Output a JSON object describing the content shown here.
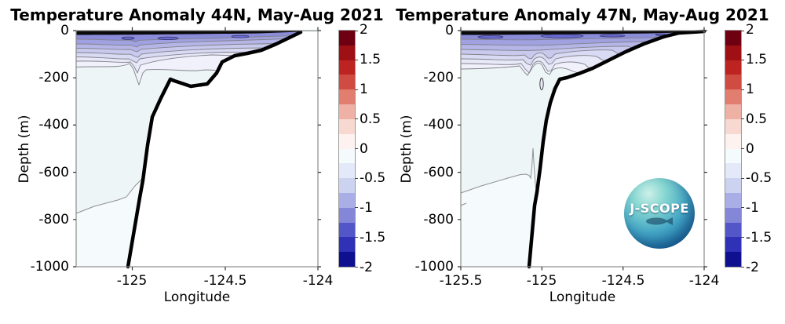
{
  "charts": [
    {
      "title": "Temperature Anomaly 44N, May-Aug 2021",
      "xlabel": "Longitude",
      "ylabel": "Depth (m)",
      "ytick_labels": [
        "0",
        "-200",
        "-400",
        "-600",
        "-800",
        "-1000"
      ],
      "xtick_labels": [
        "-125",
        "-124.5",
        "-124"
      ]
    },
    {
      "title": "Temperature Anomaly 47N, May-Aug 2021",
      "xlabel": "Longitude",
      "ylabel": "Depth (m)",
      "ytick_labels": [
        "0",
        "-200",
        "-400",
        "-600",
        "-800",
        "-1000"
      ],
      "xtick_labels": [
        "-125.5",
        "-125",
        "-124.5",
        "-124"
      ],
      "logo_text": "J-SCOPE"
    }
  ],
  "colorbar": {
    "tick_labels": [
      "2",
      "1.5",
      "1",
      "0.5",
      "0",
      "-0.5",
      "-1",
      "-1.5",
      "-2"
    ],
    "colors": [
      "#6f0012",
      "#9e1014",
      "#bc2321",
      "#d04b41",
      "#e17e70",
      "#efb0a5",
      "#f8d9d2",
      "#fdf2ef",
      "#f5fafd",
      "#e3e9f8",
      "#cbd3f0",
      "#a9aee6",
      "#8487d8",
      "#5356c8",
      "#2f31b6",
      "#0f1090"
    ]
  },
  "chart_data": [
    {
      "type": "heatmap",
      "subtype": "filled-contour-ocean-section",
      "title": "Temperature Anomaly 44N, May-Aug 2021",
      "xlabel": "Longitude",
      "ylabel": "Depth (m)",
      "xlim": [
        -125.3,
        -124.0
      ],
      "ylim": [
        -1000,
        0
      ],
      "xticks": [
        -125,
        -124.5,
        -124
      ],
      "yticks": [
        0,
        -200,
        -400,
        -600,
        -800,
        -1000
      ],
      "colorbar": {
        "range": [
          -2,
          2
        ],
        "ticks": [
          2,
          1.5,
          1,
          0.5,
          0,
          -0.5,
          -1,
          -1.5,
          -2
        ],
        "level_step": 0.25,
        "palette": "blue-white-red diverging, 16 discrete levels"
      },
      "field_summary": "Cool anomaly (-0.75 to -2 C) confined to upper ~100 m across the section, packed contours at surface; anomaly magnitude decays to ~0 to -0.25 C below ~150 m; weak -0.25 contour dips to ~-270 m near the shelf and a narrow spike near lon -124.62 reaches ~-230 m",
      "bathymetry_profile": [
        {
          "lon": -124.09,
          "depth": 0
        },
        {
          "lon": -124.31,
          "depth": -83
        },
        {
          "lon": -124.45,
          "depth": -106
        },
        {
          "lon": -124.55,
          "depth": -179
        },
        {
          "lon": -124.6,
          "depth": -226
        },
        {
          "lon": -124.69,
          "depth": -236
        },
        {
          "lon": -124.79,
          "depth": -206
        },
        {
          "lon": -124.89,
          "depth": -365
        },
        {
          "lon": -124.94,
          "depth": -634
        },
        {
          "lon": -125.02,
          "depth": -1000
        }
      ]
    },
    {
      "type": "heatmap",
      "subtype": "filled-contour-ocean-section",
      "title": "Temperature Anomaly 47N, May-Aug 2021",
      "xlabel": "Longitude",
      "ylabel": "Depth (m)",
      "xlim": [
        -125.5,
        -124.0
      ],
      "ylim": [
        -1000,
        0
      ],
      "xticks": [
        -125.5,
        -125,
        -124.5,
        -124
      ],
      "yticks": [
        0,
        -200,
        -400,
        -600,
        -800,
        -1000
      ],
      "colorbar": {
        "range": [
          -2,
          2
        ],
        "ticks": [
          2,
          1.5,
          1,
          0.5,
          0,
          -0.5,
          -1,
          -1.5,
          -2
        ],
        "level_step": 0.25,
        "palette": "blue-white-red diverging, 16 discrete levels"
      },
      "field_summary": "Cool anomaly (-0.75 to -2 C) in upper ~100 m shoaling toward the coast; double downward dip of pale contours near lon -125.0; anomaly ~0 to -0.25 C below ~150 m; -0.25 contour near -750 m offshore rises shoreward with a spike to ~-500 m at the slope; small closed contour near lon -125.0 at ~-230 m",
      "bathymetry_profile": [
        {
          "lon": -124.0,
          "depth": 0
        },
        {
          "lon": -124.16,
          "depth": -10
        },
        {
          "lon": -124.25,
          "depth": -27
        },
        {
          "lon": -124.37,
          "depth": -56
        },
        {
          "lon": -124.48,
          "depth": -90
        },
        {
          "lon": -124.59,
          "depth": -126
        },
        {
          "lon": -124.69,
          "depth": -159
        },
        {
          "lon": -124.77,
          "depth": -183
        },
        {
          "lon": -124.85,
          "depth": -199
        },
        {
          "lon": -124.89,
          "depth": -206
        },
        {
          "lon": -124.92,
          "depth": -246
        },
        {
          "lon": -124.95,
          "depth": -306
        },
        {
          "lon": -124.97,
          "depth": -379
        },
        {
          "lon": -124.99,
          "depth": -468
        },
        {
          "lon": -125.01,
          "depth": -585
        },
        {
          "lon": -125.03,
          "depth": -684
        },
        {
          "lon": -125.08,
          "depth": -1000
        }
      ]
    }
  ]
}
